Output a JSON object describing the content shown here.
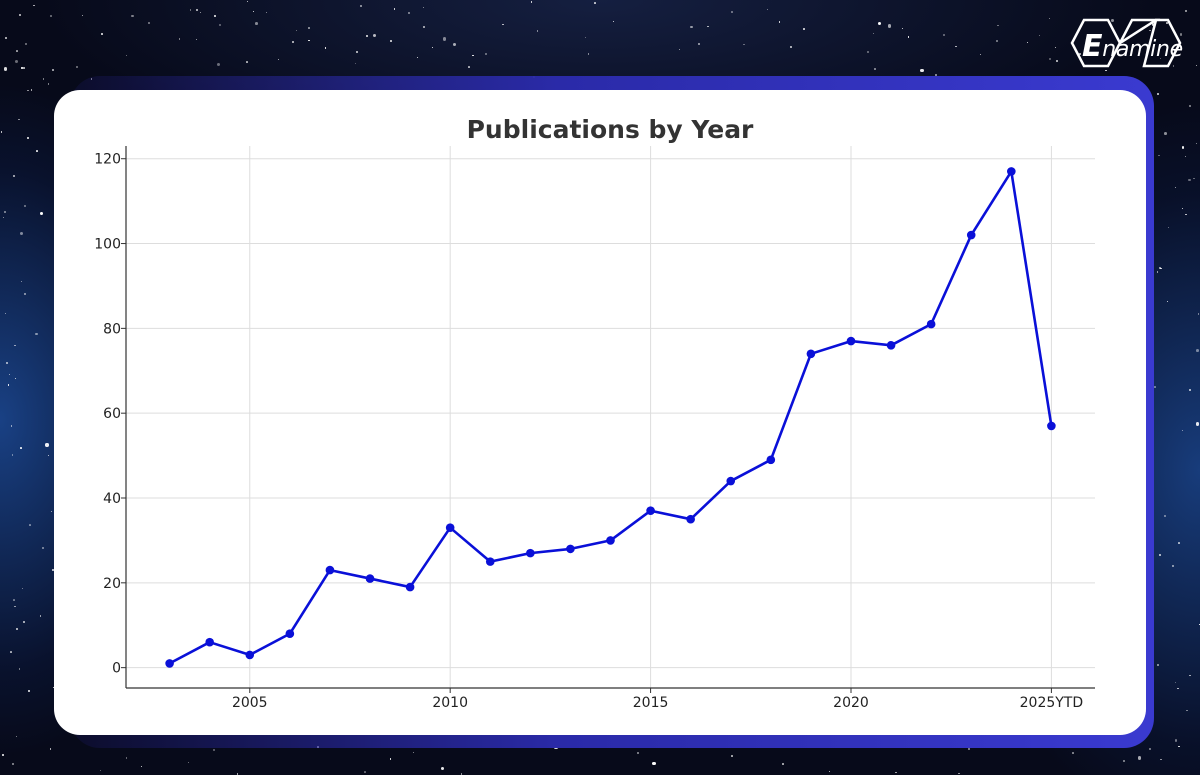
{
  "logo": {
    "first_letter": "E",
    "rest": "namine"
  },
  "chart_data": {
    "type": "line",
    "title": "Publications by Year",
    "xlabel": "",
    "ylabel": "",
    "x_labels": [
      "2003",
      "2004",
      "2005",
      "2006",
      "2007",
      "2008",
      "2009",
      "2010",
      "2011",
      "2012",
      "2013",
      "2014",
      "2015",
      "2016",
      "2017",
      "2018",
      "2019",
      "2020",
      "2021",
      "2022",
      "2023",
      "2024",
      "2025YTD"
    ],
    "x_ticks": [
      "2005",
      "2010",
      "2015",
      "2020",
      "2025YTD"
    ],
    "series": [
      {
        "values": [
          1,
          6,
          3,
          8,
          23,
          21,
          19,
          33,
          25,
          27,
          28,
          30,
          37,
          35,
          44,
          49,
          74,
          77,
          76,
          81,
          102,
          117,
          57
        ]
      }
    ],
    "ylim": [
      -4.8,
      123
    ],
    "y_ticks": [
      0,
      20,
      40,
      60,
      80,
      100,
      120
    ],
    "grid": true,
    "line_color": "#0a10d8",
    "marker_color": "#0a10d8"
  }
}
